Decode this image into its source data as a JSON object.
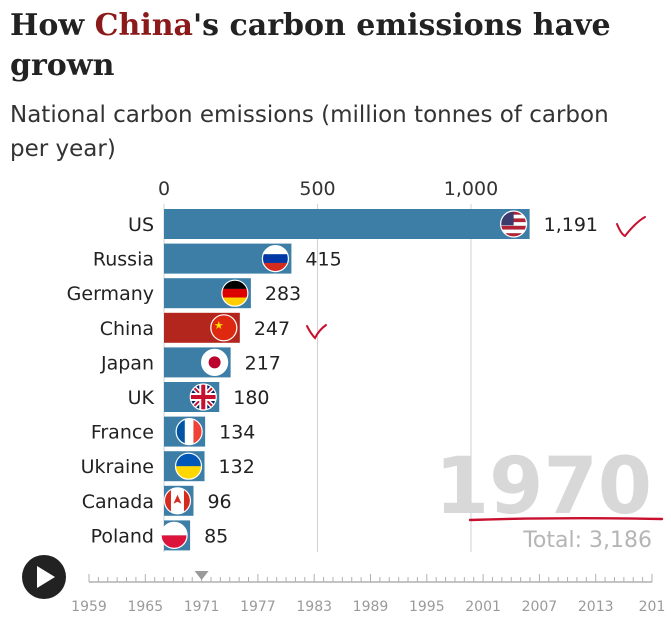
{
  "title": {
    "before": "How ",
    "highlight": "China",
    "after": "'s carbon emissions have grown"
  },
  "subtitle": "National carbon emissions (million tonnes of carbon per year)",
  "colors": {
    "bar": "#3d7ea6",
    "highlight_bar": "#b3261e",
    "year": "#d8d8d8",
    "total": "#b5b5b5",
    "annotation": "#c8102e"
  },
  "chart_data": {
    "type": "bar",
    "orientation": "horizontal",
    "categories": [
      "US",
      "Russia",
      "Germany",
      "China",
      "Japan",
      "UK",
      "France",
      "Ukraine",
      "Canada",
      "Poland"
    ],
    "values": [
      1191,
      415,
      283,
      247,
      217,
      180,
      134,
      132,
      96,
      85
    ],
    "value_labels": [
      "1,191",
      "415",
      "283",
      "247",
      "217",
      "180",
      "134",
      "132",
      "96",
      "85"
    ],
    "highlight": "China",
    "x_ticks": [
      0,
      500,
      1000
    ],
    "x_tick_labels": [
      "0",
      "500",
      "1,000"
    ],
    "flags": [
      "us-flag-icon",
      "russia-flag-icon",
      "germany-flag-icon",
      "china-flag-icon",
      "japan-flag-icon",
      "uk-flag-icon",
      "france-flag-icon",
      "ukraine-flag-icon",
      "canada-flag-icon",
      "poland-flag-icon"
    ],
    "grid": true,
    "year": "1970",
    "total_label": "Total: 3,186"
  },
  "timeline": {
    "years": [
      "1959",
      "1965",
      "1971",
      "1977",
      "1983",
      "1989",
      "1995",
      "2001",
      "2007",
      "2013",
      "201"
    ],
    "current_marker": "1971",
    "play_icon": "play-icon"
  },
  "annotations": {
    "checkmarks": [
      "US",
      "China"
    ],
    "underline": "1970"
  }
}
